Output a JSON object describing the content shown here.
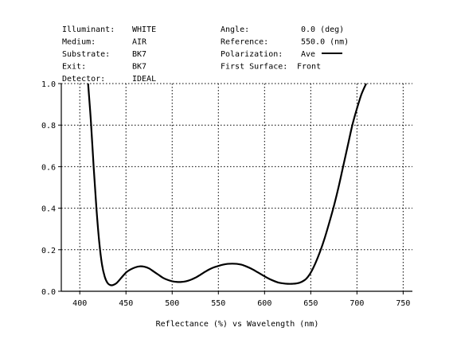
{
  "header_info": {
    "left": [
      {
        "label": "Illuminant:",
        "value": "WHITE"
      },
      {
        "label": "Medium:",
        "value": "AIR"
      },
      {
        "label": "Substrate:",
        "value": "BK7"
      },
      {
        "label": "Exit:",
        "value": "BK7"
      },
      {
        "label": "Detector:",
        "value": "IDEAL"
      }
    ],
    "right": [
      {
        "label": "Angle:",
        "value": "0.0 (deg)"
      },
      {
        "label": "Reference:",
        "value": "550.0 (nm)"
      },
      {
        "label": "Polarization:",
        "value": "Ave"
      },
      {
        "label": "First Surface:",
        "value": "Front"
      }
    ]
  },
  "chart_data": {
    "type": "line",
    "title": "",
    "xlabel": "Reflectance (%)  vs  Wavelength (nm)",
    "ylabel": "",
    "xlim": [
      380,
      760
    ],
    "ylim": [
      0,
      1.0
    ],
    "x_ticks": [
      400,
      450,
      500,
      550,
      600,
      650,
      700,
      750
    ],
    "y_ticks": [
      0.0,
      0.2,
      0.4,
      0.6,
      0.8,
      1.0
    ],
    "y_tick_labels": [
      "0.0",
      "0.2",
      "0.4",
      "0.6",
      "0.8",
      "1.0"
    ],
    "grid": true,
    "grid_style": "dotted",
    "legend": "top-right",
    "series": [
      {
        "name": "Ave",
        "color": "#000000",
        "x": [
          409,
          412,
          415,
          418,
          421,
          424,
          427,
          430,
          433,
          436,
          440,
          445,
          450,
          455,
          460,
          465,
          470,
          475,
          480,
          485,
          490,
          495,
          500,
          505,
          510,
          515,
          520,
          525,
          530,
          535,
          540,
          545,
          550,
          555,
          560,
          565,
          570,
          575,
          580,
          585,
          590,
          595,
          600,
          605,
          610,
          615,
          620,
          625,
          630,
          635,
          640,
          645,
          650,
          655,
          660,
          665,
          670,
          675,
          680,
          685,
          690,
          695,
          700,
          705,
          710
        ],
        "y": [
          1.0,
          0.82,
          0.6,
          0.4,
          0.24,
          0.13,
          0.07,
          0.04,
          0.03,
          0.03,
          0.04,
          0.065,
          0.09,
          0.105,
          0.115,
          0.12,
          0.118,
          0.11,
          0.095,
          0.08,
          0.065,
          0.055,
          0.048,
          0.045,
          0.045,
          0.048,
          0.055,
          0.065,
          0.078,
          0.092,
          0.105,
          0.115,
          0.122,
          0.128,
          0.132,
          0.133,
          0.132,
          0.128,
          0.12,
          0.11,
          0.098,
          0.085,
          0.072,
          0.06,
          0.05,
          0.042,
          0.038,
          0.036,
          0.036,
          0.038,
          0.045,
          0.06,
          0.09,
          0.135,
          0.19,
          0.255,
          0.33,
          0.41,
          0.5,
          0.6,
          0.7,
          0.8,
          0.88,
          0.95,
          1.0
        ]
      }
    ]
  }
}
